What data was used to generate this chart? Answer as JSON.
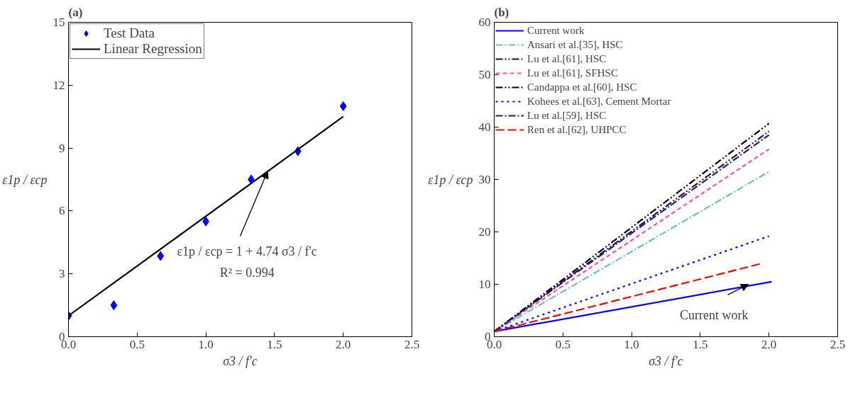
{
  "chart_data": [
    {
      "type": "scatter",
      "title": "(a)",
      "xlabel": "σ3 / f'c",
      "ylabel": "ε1p / εcp",
      "xlim": [
        0,
        2.5
      ],
      "ylim": [
        0,
        15
      ],
      "xticks": [
        {
          "value": 0,
          "label": "0.0"
        },
        0.5,
        {
          "value": 1,
          "label": "1.0"
        },
        1.5,
        {
          "value": 2,
          "label": "2.0"
        },
        2.5
      ],
      "yticks": [
        0,
        3,
        6,
        9,
        12,
        15
      ],
      "grid": false,
      "legend": "top left",
      "series": [
        {
          "name": "Test Data",
          "type": "scatter",
          "marker": "diamond",
          "color": "#0000ff",
          "x": [
            0.0,
            0.33,
            0.67,
            1.0,
            1.33,
            1.67,
            2.0
          ],
          "values": [
            1.0,
            1.5,
            3.85,
            5.5,
            7.5,
            8.85,
            11.0
          ]
        },
        {
          "name": "Linear Regression",
          "type": "line",
          "line_style": "solid",
          "color": "#000000",
          "x": [
            0.0,
            2.0
          ],
          "values": [
            1.0,
            10.5
          ]
        }
      ],
      "annotations": [
        {
          "text": "ε1p / εcp = 1 + 4.74 σ3 / f'c",
          "x": 1.45,
          "y": 7.9
        },
        "R² = 0.994"
      ]
    },
    {
      "type": "line",
      "title": "(b)",
      "xlabel": "σ3 / f'c",
      "ylabel": "ε1p / εcp",
      "xlim": [
        0,
        2.5
      ],
      "ylim": [
        0,
        60
      ],
      "xticks": [
        {
          "value": 0,
          "label": "0.0"
        },
        0.5,
        {
          "value": 1,
          "label": "1.0"
        },
        1.5,
        {
          "value": 2,
          "label": "2.0"
        },
        2.5
      ],
      "yticks": [
        0,
        10,
        20,
        30,
        40,
        50,
        60
      ],
      "grid": false,
      "legend": "top left",
      "series": [
        {
          "name": "Current work",
          "line_style": "solid",
          "color": "#0000ff",
          "x": [
            0,
            2.02
          ],
          "values": [
            1,
            10.5
          ]
        },
        {
          "name": "Ansari et al.[35], HSC",
          "line_style": "dashdot",
          "color": "#6cc0b8",
          "x": [
            0,
            2.0
          ],
          "values": [
            1,
            31.5
          ]
        },
        {
          "name": "Lu et al.[61], HSC",
          "line_style": "dashdotdot",
          "color": "#3a0050",
          "x": [
            0,
            2.0
          ],
          "values": [
            1,
            39.2
          ]
        },
        {
          "name": "Lu et al.[61], SFHSC",
          "line_style": "dashed",
          "color": "#ff4fa8",
          "x": [
            0,
            2.0
          ],
          "values": [
            1,
            35.8
          ]
        },
        {
          "name": "Candappa et al.[60], HSC",
          "line_style": "dashdotdot",
          "color": "#000000",
          "x": [
            0,
            2.0
          ],
          "values": [
            1,
            40.7
          ]
        },
        {
          "name": "Kohees et al.[63], Cement Mortar",
          "line_style": "dotted",
          "color": "#0000ff",
          "x": [
            0,
            2.0
          ],
          "values": [
            1,
            19.2
          ]
        },
        {
          "name": "Lu et al.[59], HSC",
          "line_style": "dashdot",
          "color": "#1a1a80",
          "x": [
            0,
            2.0
          ],
          "values": [
            1,
            38.5
          ]
        },
        {
          "name": "Ren et al.[62], UHPCC",
          "line_style": "dashed_long",
          "color": "#ff0000",
          "x": [
            0,
            1.95
          ],
          "values": [
            1,
            14.0
          ]
        }
      ],
      "annotations": [
        {
          "text": "Current work",
          "x": 1.85,
          "y": 10.0
        }
      ]
    }
  ]
}
